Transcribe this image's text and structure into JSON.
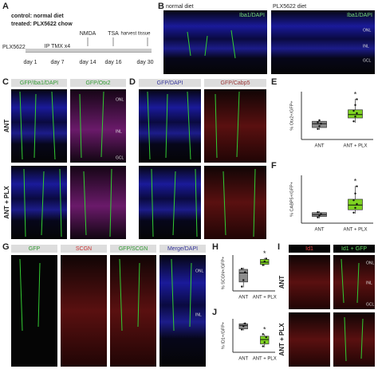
{
  "timeline": {
    "letter": "A",
    "control": "control: normal diet",
    "treated": "treated: PLX5622 chow",
    "drug": "PLX5622",
    "injection": "IP TMX x4",
    "events": [
      "NMDA",
      "TSA",
      "harvest tissue"
    ],
    "days": [
      "day 1",
      "day 7",
      "day 14",
      "day 16",
      "day 30"
    ]
  },
  "panel_b": {
    "letter": "B",
    "titles": [
      "normal diet",
      "PLX5622 diet"
    ],
    "stain": "Iba1/DAPI",
    "layers": [
      "ONL",
      "INL",
      "GCL"
    ]
  },
  "panel_c": {
    "letter": "C",
    "headers": [
      "GFP/Iba1/DAPI",
      "GFP/Otx2"
    ],
    "rows": [
      "ANT",
      "ANT + PLX"
    ],
    "layers": [
      "ONL",
      "INL",
      "GCL"
    ]
  },
  "panel_d": {
    "letter": "D",
    "headers": [
      "GFP/DAPI",
      "GFP/Cabp5"
    ]
  },
  "panel_g": {
    "letter": "G",
    "headers": [
      "GFP",
      "SCGN",
      "GFP/SCGN",
      "Merge/DAPI"
    ],
    "layers": [
      "ONL",
      "INL"
    ]
  },
  "panel_i": {
    "letter": "I",
    "headers": [
      "Id1",
      "Id1 + GFP"
    ],
    "rows": [
      "ANT",
      "ANT + PLX"
    ],
    "layers": [
      "ONL",
      "INL",
      "GCL"
    ]
  },
  "plots": [
    {
      "letter": "E",
      "ylabel": "% Otx2+/GFP+",
      "categories": [
        "ANT",
        "ANT + PLX"
      ],
      "ylim": [
        0,
        100
      ],
      "colors": [
        "#8c8c8c",
        "#7ed321"
      ],
      "significance": "*",
      "boxes": [
        {
          "low": 20,
          "q1": 25,
          "median": 33,
          "q3": 38,
          "high": 42,
          "points": [
            22,
            28,
            33,
            36,
            40
          ]
        },
        {
          "low": 35,
          "q1": 45,
          "median": 52,
          "q3": 62,
          "high": 85,
          "points": [
            38,
            48,
            55,
            60,
            72,
            84
          ]
        }
      ]
    },
    {
      "letter": "F",
      "ylabel": "% CABP5+/GFP+",
      "categories": [
        "ANT",
        "ANT + PLX"
      ],
      "ylim": [
        0,
        100
      ],
      "colors": [
        "#8c8c8c",
        "#7ed321"
      ],
      "significance": "*",
      "boxes": [
        {
          "low": 10,
          "q1": 14,
          "median": 18,
          "q3": 22,
          "high": 25,
          "points": [
            12,
            16,
            19,
            23
          ]
        },
        {
          "low": 20,
          "q1": 28,
          "median": 38,
          "q3": 50,
          "high": 78,
          "points": [
            22,
            32,
            40,
            48,
            62,
            77
          ]
        }
      ]
    },
    {
      "letter": "H",
      "ylabel": "% SCGN+/GFP+",
      "categories": [
        "ANT",
        "ANT + PLX"
      ],
      "ylim": [
        0,
        100
      ],
      "colors": [
        "#8c8c8c",
        "#7ed321"
      ],
      "significance": "*",
      "boxes": [
        {
          "low": 10,
          "q1": 25,
          "median": 50,
          "q3": 60,
          "high": 65,
          "points": [
            12,
            30,
            52,
            62
          ]
        },
        {
          "low": 70,
          "q1": 74,
          "median": 80,
          "q3": 88,
          "high": 92,
          "points": [
            72,
            82,
            90
          ]
        }
      ]
    },
    {
      "letter": "J",
      "ylabel": "% ID1+/GFP+",
      "categories": [
        "ANT",
        "ANT + PLX"
      ],
      "ylim": [
        0,
        100
      ],
      "colors": [
        "#8c8c8c",
        "#7ed321"
      ],
      "significance": "*",
      "boxes": [
        {
          "low": 65,
          "q1": 70,
          "median": 80,
          "q3": 85,
          "high": 88,
          "points": [
            68,
            78,
            86
          ]
        },
        {
          "low": 15,
          "q1": 25,
          "median": 38,
          "q3": 48,
          "high": 55,
          "points": [
            18,
            30,
            45,
            54
          ]
        }
      ]
    }
  ]
}
